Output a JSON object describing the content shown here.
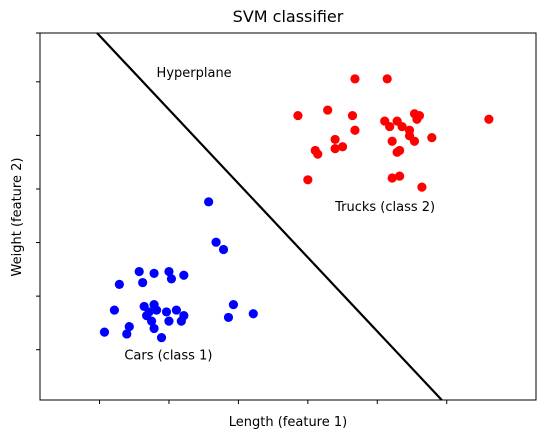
{
  "chart_data": {
    "type": "scatter",
    "title": "SVM classifier",
    "xlabel": "Length (feature 1)",
    "ylabel": "Weight (feature 2)",
    "xlim": [
      0,
      10
    ],
    "ylim": [
      0,
      10
    ],
    "xticks": [
      1.2,
      2.6,
      4.0,
      5.4,
      6.8,
      8.2
    ],
    "yticks": [
      1.37,
      2.83,
      4.29,
      5.75,
      7.21,
      8.67,
      10.0
    ],
    "grid": false,
    "series": [
      {
        "color": "#0000ff",
        "points": [
          [
            1.6,
            3.15
          ],
          [
            2.0,
            3.5
          ],
          [
            2.07,
            3.2
          ],
          [
            2.3,
            3.45
          ],
          [
            2.6,
            3.5
          ],
          [
            2.65,
            3.3
          ],
          [
            2.9,
            3.4
          ],
          [
            1.5,
            2.45
          ],
          [
            2.1,
            2.55
          ],
          [
            2.2,
            2.4
          ],
          [
            2.15,
            2.3
          ],
          [
            2.3,
            2.6
          ],
          [
            2.35,
            2.45
          ],
          [
            2.55,
            2.4
          ],
          [
            2.75,
            2.45
          ],
          [
            2.9,
            2.3
          ],
          [
            2.85,
            2.15
          ],
          [
            2.6,
            2.15
          ],
          [
            2.25,
            2.15
          ],
          [
            1.8,
            2.0
          ],
          [
            1.75,
            1.8
          ],
          [
            1.3,
            1.85
          ],
          [
            3.4,
            5.4
          ],
          [
            3.55,
            4.3
          ],
          [
            3.7,
            4.1
          ],
          [
            3.9,
            2.6
          ],
          [
            3.8,
            2.25
          ],
          [
            4.3,
            2.35
          ],
          [
            2.45,
            1.7
          ],
          [
            2.3,
            1.95
          ]
        ]
      },
      {
        "color": "#ff0000",
        "points": [
          [
            6.35,
            8.75
          ],
          [
            7.0,
            8.75
          ],
          [
            5.2,
            7.75
          ],
          [
            5.8,
            7.9
          ],
          [
            6.3,
            7.75
          ],
          [
            6.35,
            7.35
          ],
          [
            5.55,
            6.8
          ],
          [
            5.6,
            6.7
          ],
          [
            5.95,
            7.1
          ],
          [
            5.95,
            6.85
          ],
          [
            6.1,
            6.9
          ],
          [
            6.95,
            7.6
          ],
          [
            7.2,
            7.6
          ],
          [
            7.05,
            7.45
          ],
          [
            7.3,
            7.45
          ],
          [
            7.1,
            7.05
          ],
          [
            7.25,
            6.8
          ],
          [
            7.2,
            6.75
          ],
          [
            7.45,
            7.35
          ],
          [
            7.55,
            7.05
          ],
          [
            7.6,
            7.65
          ],
          [
            7.55,
            7.8
          ],
          [
            7.65,
            7.75
          ],
          [
            7.9,
            7.15
          ],
          [
            7.45,
            7.2
          ],
          [
            9.05,
            7.65
          ],
          [
            5.4,
            6.0
          ],
          [
            7.1,
            6.05
          ],
          [
            7.25,
            6.1
          ],
          [
            7.7,
            5.8
          ]
        ]
      }
    ],
    "hyperplane": {
      "x": [
        1.15,
        8.1
      ],
      "y": [
        10.0,
        0.0
      ]
    },
    "annotations": [
      {
        "text": "Hyperplane",
        "x": 2.35,
        "y": 8.8
      },
      {
        "text": "Trucks (class 2)",
        "x": 5.95,
        "y": 5.15
      },
      {
        "text": "Cars (class 1)",
        "x": 1.7,
        "y": 1.1
      }
    ]
  }
}
